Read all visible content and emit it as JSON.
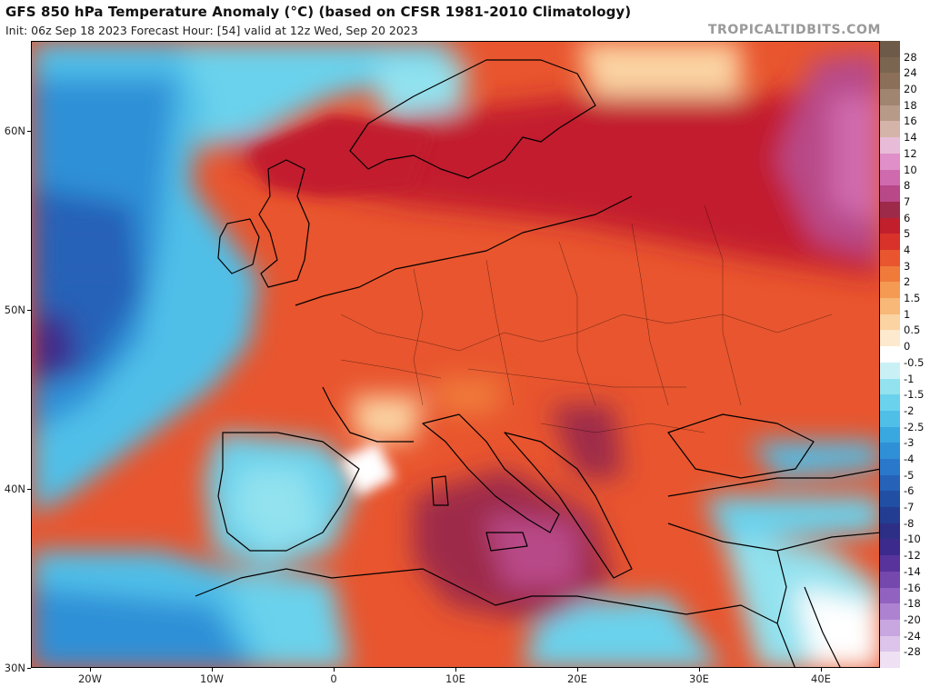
{
  "header": {
    "title": "GFS 850 hPa Temperature Anomaly (°C) (based on CFSR 1981-2010 Climatology)",
    "subtitle": "Init: 06z Sep 18 2023   Forecast Hour: [54]   valid at 12z Wed, Sep 20 2023",
    "brand": "TROPICALTIDBITS.COM"
  },
  "map": {
    "lat_labels": [
      "60N",
      "50N",
      "40N",
      "30N"
    ],
    "lon_labels": [
      "20W",
      "10W",
      "0",
      "10E",
      "20E",
      "30E",
      "40E"
    ]
  },
  "colorbar": {
    "labels": [
      "28",
      "24",
      "20",
      "18",
      "16",
      "14",
      "12",
      "10",
      "8",
      "7",
      "6",
      "5",
      "4",
      "3",
      "2",
      "1.5",
      "1",
      "0.5",
      "0",
      "-0.5",
      "-1",
      "-1.5",
      "-2",
      "-2.5",
      "-3",
      "-4",
      "-5",
      "-6",
      "-7",
      "-8",
      "-10",
      "-12",
      "-14",
      "-16",
      "-18",
      "-20",
      "-24",
      "-28"
    ],
    "colors": [
      "#7a6550",
      "#8c6f58",
      "#a08570",
      "#b89a88",
      "#d4b4a8",
      "#e8bcd8",
      "#e08fc8",
      "#d06aae",
      "#b84888",
      "#9e2a4a",
      "#c21f2d",
      "#d8322a",
      "#e8552e",
      "#f07a3a",
      "#f59a52",
      "#f8b877",
      "#fbd3a2",
      "#fde9cd",
      "#ffffff",
      "#c9f1f5",
      "#92e2ef",
      "#6ad2ec",
      "#4fbfe8",
      "#3aa8e0",
      "#2f90d7",
      "#2a78cc",
      "#2562b8",
      "#214fa4",
      "#223d92",
      "#2d2f86",
      "#3c2a8c",
      "#58339c",
      "#7548ae",
      "#9262c0",
      "#ad82d0",
      "#c8a6e0",
      "#dcc4ea",
      "#efe0f4"
    ]
  }
}
